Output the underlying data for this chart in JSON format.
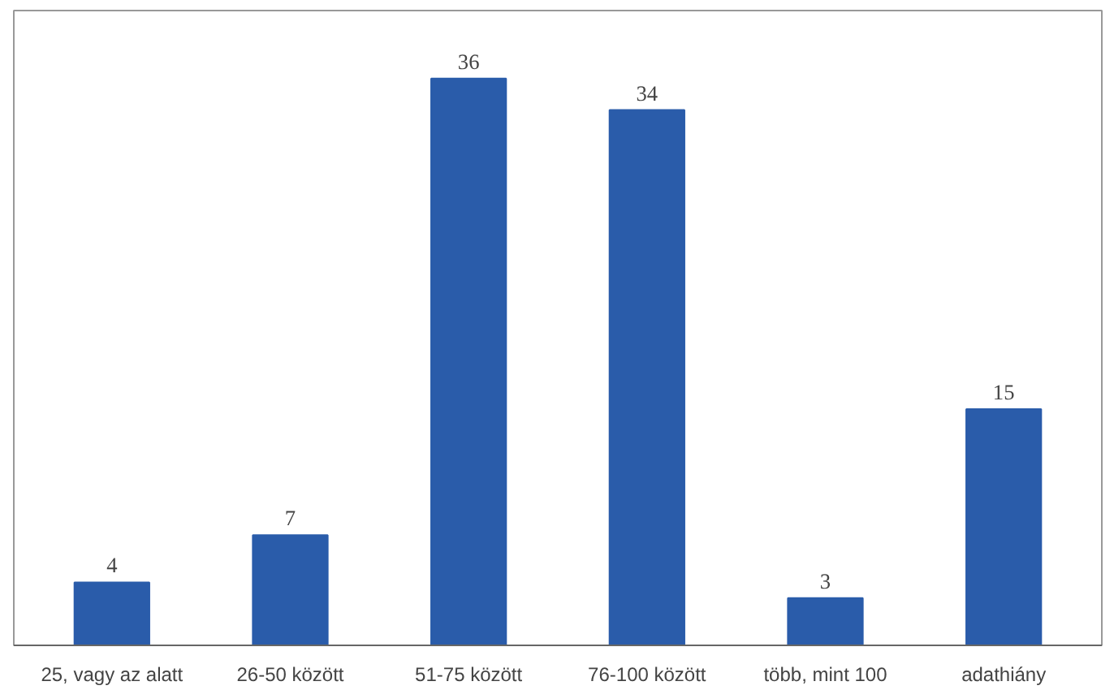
{
  "chart_data": {
    "type": "bar",
    "categories": [
      "25, vagy az alatt",
      "26-50 között",
      "51-75 között",
      "76-100 között",
      "több, mint 100",
      "adathiány"
    ],
    "values": [
      4,
      7,
      36,
      34,
      3,
      15
    ],
    "color": "#2a5caa",
    "data_labels": true,
    "grid": false
  }
}
